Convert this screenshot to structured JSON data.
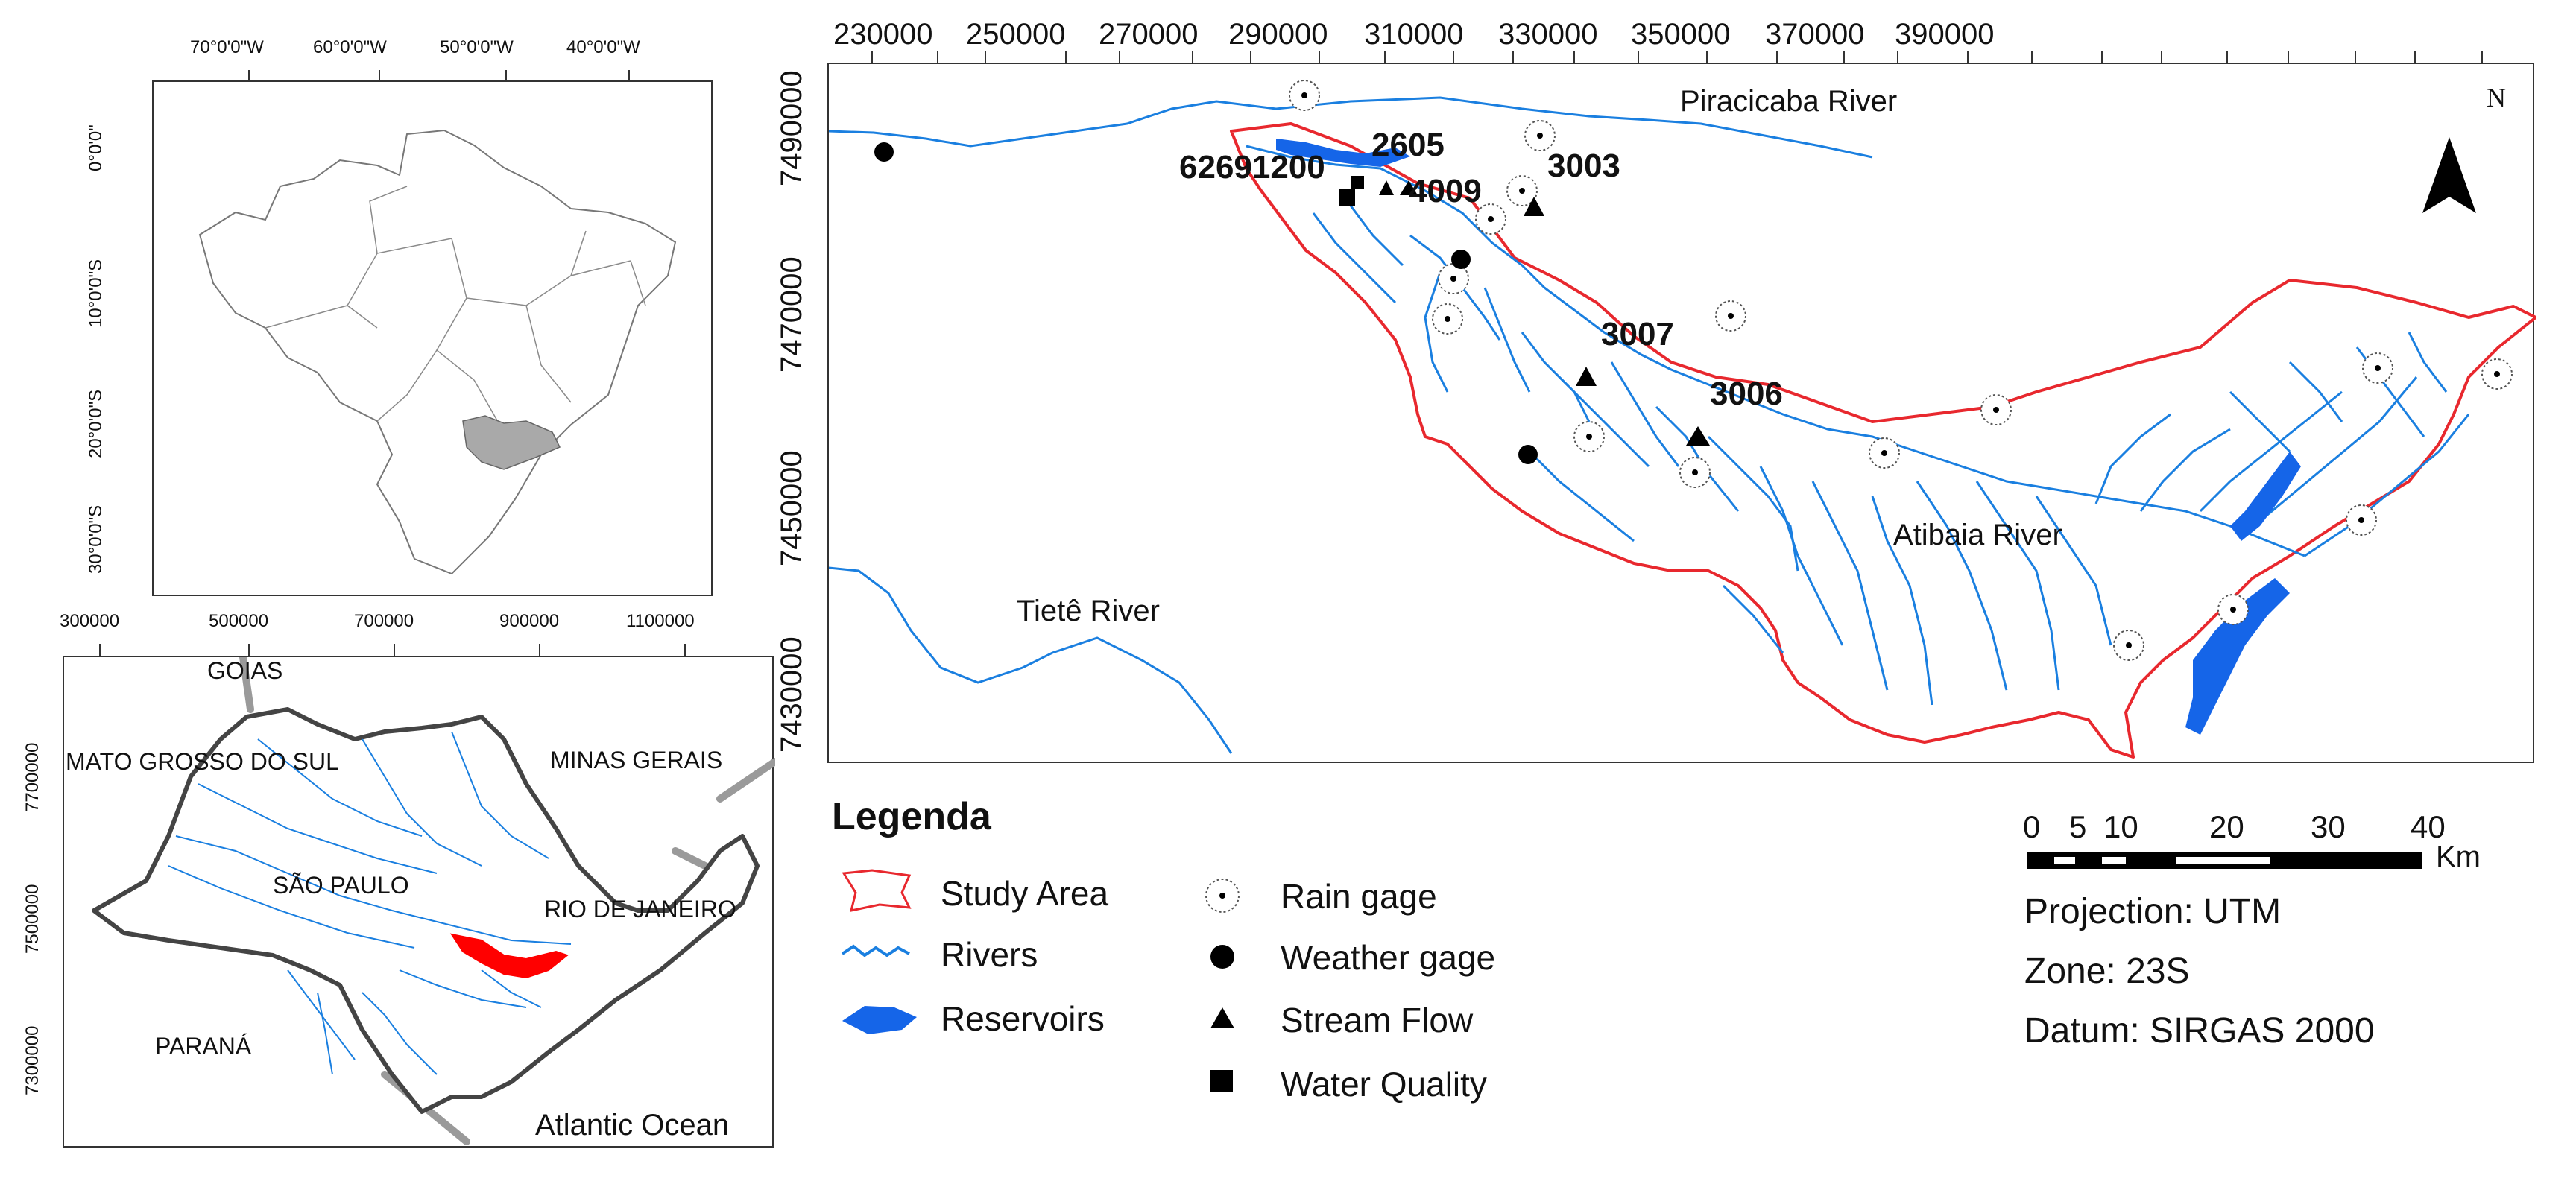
{
  "colors": {
    "river": "#1a7fe0",
    "reservoir": "#1565e8",
    "study_area": "#e8282e",
    "state_highlight": "#a9a9a9",
    "state_border": "#444444"
  },
  "brazil_map": {
    "lon_ticks": [
      "70°0'0\"W",
      "60°0'0\"W",
      "50°0'0\"W",
      "40°0'0\"W"
    ],
    "lat_ticks": [
      "0°0'0\"",
      "10°0'0\"S",
      "20°0'0\"S",
      "30°0'0\"S"
    ]
  },
  "sp_map": {
    "x_ticks": [
      "300000",
      "500000",
      "700000",
      "900000",
      "1100000"
    ],
    "y_ticks": [
      "7700000",
      "7500000",
      "7300000"
    ],
    "labels": {
      "goias": "GOIAS",
      "mato_grosso_do_sul": "MATO GROSSO DO SUL",
      "minas_gerais": "MINAS GERAIS",
      "sao_paulo": "SÃO PAULO",
      "rio_de_janeiro": "RIO DE JANEIRO",
      "parana": "PARANÁ",
      "atlantic_ocean": "Atlantic Ocean"
    }
  },
  "main_map": {
    "x_ticks": [
      "230000",
      "250000",
      "270000",
      "290000",
      "310000",
      "330000",
      "350000",
      "370000",
      "390000"
    ],
    "y_ticks": [
      "7490000",
      "7470000",
      "7450000",
      "7430000"
    ],
    "river_labels": {
      "piracicaba": "Piracicaba River",
      "tiete": "Tietê River",
      "atibaia": "Atibaia River"
    },
    "station_labels": [
      "62691200",
      "2605",
      "4009",
      "3003",
      "3007",
      "3006"
    ],
    "north_label": "N"
  },
  "legend": {
    "title": "Legenda",
    "items": [
      {
        "label": "Study Area",
        "icon": "study-area-polygon"
      },
      {
        "label": "Rivers",
        "icon": "river-line"
      },
      {
        "label": "Reservoirs",
        "icon": "reservoir-blob"
      },
      {
        "label": "Rain gage",
        "icon": "rain-gage-symbol"
      },
      {
        "label": "Weather gage",
        "icon": "weather-gage-dot"
      },
      {
        "label": "Stream Flow",
        "icon": "stream-flow-triangle"
      },
      {
        "label": "Water Quality",
        "icon": "water-quality-square"
      }
    ]
  },
  "scale_bar": {
    "labels": [
      "0",
      "5",
      "10",
      "20",
      "30",
      "40"
    ],
    "unit": "Km"
  },
  "projection_info": {
    "projection": "Projection: UTM",
    "zone": "Zone: 23S",
    "datum": "Datum: SIRGAS 2000"
  }
}
